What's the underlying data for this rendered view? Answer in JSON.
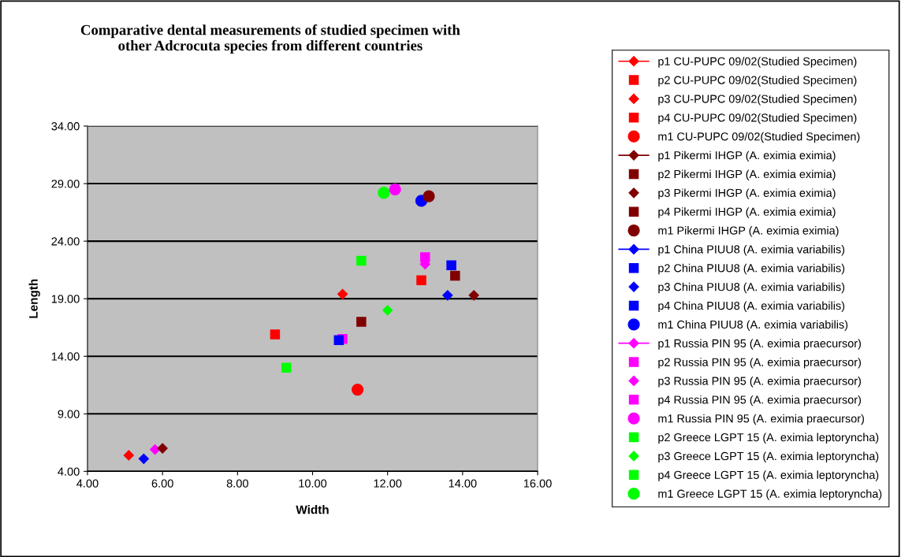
{
  "chart_data": {
    "type": "scatter",
    "title": "Comparative dental measurements of studied specimen with\nother Adcrocuta species from different countries",
    "xlabel": "Width",
    "ylabel": "Length",
    "xlim": [
      4,
      16
    ],
    "xticks": [
      {
        "value": 4,
        "label": "4.00"
      },
      {
        "value": 6,
        "label": "6.00"
      },
      {
        "value": 8,
        "label": "8.00"
      },
      {
        "value": 10,
        "label": "10.00"
      },
      {
        "value": 12,
        "label": "12.00"
      },
      {
        "value": 14,
        "label": "14.00"
      },
      {
        "value": 16,
        "label": "16.00"
      }
    ],
    "ylim": [
      4,
      34
    ],
    "yticks": [
      {
        "value": 4,
        "label": "4.00"
      },
      {
        "value": 9,
        "label": "9.00"
      },
      {
        "value": 14,
        "label": "14.00"
      },
      {
        "value": 19,
        "label": "19.00"
      },
      {
        "value": 24,
        "label": "24.00"
      },
      {
        "value": 29,
        "label": "29.00"
      },
      {
        "value": 34,
        "label": "34.00"
      }
    ],
    "grid": "y",
    "legend": "right",
    "series": [
      {
        "name": "p1 CU-PUPC 09/02(Studied Specimen)",
        "type": "line",
        "marker": "diamond",
        "color": "#ff0000",
        "x": [
          5.1
        ],
        "values": [
          5.4
        ]
      },
      {
        "name": "p2 CU-PUPC 09/02(Studied Specimen)",
        "marker": "square",
        "color": "#ff0000",
        "x": [
          9.0
        ],
        "values": [
          15.9
        ]
      },
      {
        "name": "p3 CU-PUPC 09/02(Studied Specimen)",
        "marker": "diamond",
        "color": "#ff0000",
        "x": [
          10.8
        ],
        "values": [
          19.4
        ]
      },
      {
        "name": "p4 CU-PUPC 09/02(Studied Specimen)",
        "marker": "square",
        "color": "#ff0000",
        "x": [
          12.9
        ],
        "values": [
          20.6
        ]
      },
      {
        "name": "m1 CU-PUPC 09/02(Studied Specimen)",
        "marker": "circle",
        "color": "#ff0000",
        "x": [
          11.2
        ],
        "values": [
          11.1
        ]
      },
      {
        "name": "p1 Pikermi IHGP (A. eximia eximia)",
        "type": "line",
        "marker": "diamond",
        "color": "#800000",
        "x": [
          6.0
        ],
        "values": [
          6.0
        ]
      },
      {
        "name": "p2 Pikermi IHGP (A. eximia eximia)",
        "marker": "square",
        "color": "#800000",
        "x": [
          11.3
        ],
        "values": [
          17.0
        ]
      },
      {
        "name": "p3 Pikermi IHGP (A. eximia eximia)",
        "marker": "diamond",
        "color": "#800000",
        "x": [
          14.3
        ],
        "values": [
          19.3
        ]
      },
      {
        "name": "p4 Pikermi IHGP (A. eximia eximia)",
        "marker": "square",
        "color": "#800000",
        "x": [
          13.8
        ],
        "values": [
          21.0
        ]
      },
      {
        "name": "m1 Pikermi IHGP (A. eximia eximia)",
        "marker": "circle",
        "color": "#800000",
        "x": [
          13.1
        ],
        "values": [
          27.9
        ]
      },
      {
        "name": "p1 China PIUU8 (A. eximia variabilis)",
        "type": "line",
        "marker": "diamond",
        "color": "#0000ff",
        "x": [
          5.5
        ],
        "values": [
          5.1
        ]
      },
      {
        "name": "p2 China PIUU8 (A. eximia variabilis)",
        "marker": "square",
        "color": "#0000ff",
        "x": [
          10.7
        ],
        "values": [
          15.4
        ]
      },
      {
        "name": "p3 China PIUU8 (A. eximia variabilis)",
        "marker": "diamond",
        "color": "#0000ff",
        "x": [
          13.6
        ],
        "values": [
          19.3
        ]
      },
      {
        "name": "p4 China PIUU8 (A. eximia variabilis)",
        "marker": "square",
        "color": "#0000ff",
        "x": [
          13.7
        ],
        "values": [
          21.9
        ]
      },
      {
        "name": "m1 China PIUU8 (A. eximia variabilis)",
        "marker": "circle",
        "color": "#0000ff",
        "x": [
          12.9
        ],
        "values": [
          27.5
        ]
      },
      {
        "name": "p1 Russia PIN 95 (A. eximia praecursor)",
        "type": "line",
        "marker": "diamond",
        "color": "#ff00ff",
        "x": [
          5.8
        ],
        "values": [
          5.9
        ]
      },
      {
        "name": "p2 Russia PIN 95 (A. eximia praecursor)",
        "marker": "square",
        "color": "#ff00ff",
        "x": [
          10.8
        ],
        "values": [
          15.5
        ]
      },
      {
        "name": "p3 Russia PIN 95 (A. eximia praecursor)",
        "marker": "diamond",
        "color": "#ff00ff",
        "x": [
          13.0
        ],
        "values": [
          22.0
        ]
      },
      {
        "name": "p4 Russia PIN 95 (A. eximia praecursor)",
        "marker": "square",
        "color": "#ff00ff",
        "x": [
          13.0
        ],
        "values": [
          22.6
        ]
      },
      {
        "name": "m1 Russia PIN 95 (A. eximia praecursor)",
        "marker": "circle",
        "color": "#ff00ff",
        "x": [
          12.2
        ],
        "values": [
          28.5
        ]
      },
      {
        "name": "p2 Greece LGPT 15 (A. eximia leptoryncha)",
        "marker": "square",
        "color": "#00ff00",
        "x": [
          9.3
        ],
        "values": [
          13.0
        ]
      },
      {
        "name": "p3 Greece LGPT 15 (A. eximia leptoryncha)",
        "marker": "diamond",
        "color": "#00ff00",
        "x": [
          12.0
        ],
        "values": [
          18.0
        ]
      },
      {
        "name": "p4 Greece LGPT 15 (A. eximia leptoryncha)",
        "marker": "square",
        "color": "#00ff00",
        "x": [
          11.3
        ],
        "values": [
          22.3
        ]
      },
      {
        "name": "m1 Greece LGPT 15 (A. eximia leptoryncha)",
        "marker": "circle",
        "color": "#00ff00",
        "x": [
          11.9
        ],
        "values": [
          28.2
        ]
      }
    ]
  }
}
